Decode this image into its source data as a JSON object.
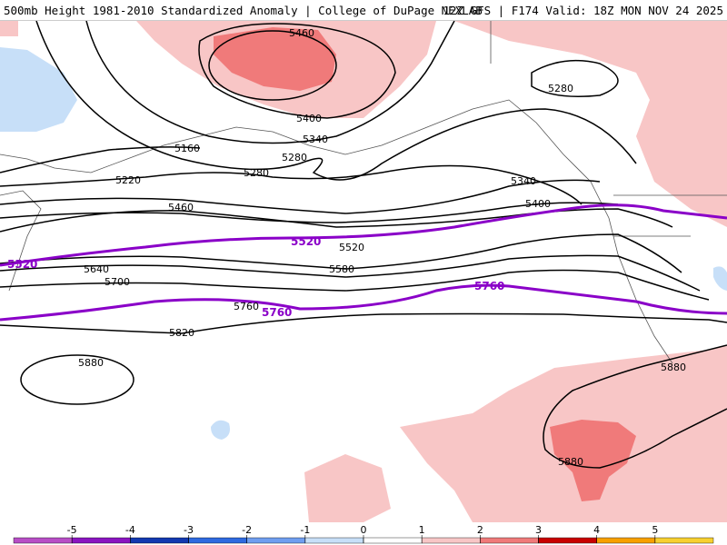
{
  "header": {
    "title_left": "500mb Height 1981-2010 Standardized Anomaly | College of DuPage NEXLAB",
    "title_right": "12Z GFS | F174 Valid: 18Z MON NOV 24 2025"
  },
  "map": {
    "contour_labels": [
      "5460",
      "5400",
      "5340",
      "5280",
      "5160",
      "5220",
      "5280",
      "5340",
      "5400",
      "5460",
      "5520",
      "5580",
      "5640",
      "5700",
      "5760",
      "5820",
      "5880",
      "5880",
      "5880",
      "5280"
    ],
    "highlight_labels": [
      "5520",
      "5520",
      "5760",
      "5760"
    ],
    "colors": {
      "anomaly_pos_1": "#f8c6c6",
      "anomaly_pos_2": "#f07a7a",
      "anomaly_neg_1": "#c7dff8",
      "contour": "#000000",
      "highlight_contour": "#8a00c8"
    }
  },
  "colorbar": {
    "ticks": [
      "-5",
      "-4",
      "-3",
      "-2",
      "-1",
      "0",
      "1",
      "2",
      "3",
      "4",
      "5"
    ],
    "colors": [
      "#b84ec6",
      "#8a14c0",
      "#1238b0",
      "#2e6ae0",
      "#6f9ef0",
      "#c7dff8",
      "#ffffff",
      "#f8c6c6",
      "#f07a7a",
      "#c80000",
      "#f8a000",
      "#f8d030"
    ]
  }
}
